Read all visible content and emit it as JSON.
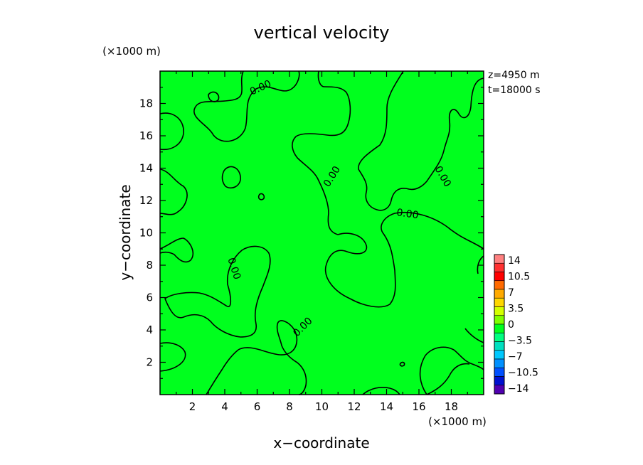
{
  "chart_data": {
    "type": "contour",
    "title": "vertical velocity",
    "xlabel": "x−coordinate",
    "ylabel": "y−coordinate",
    "x_unit": "(×1000 m)",
    "y_unit": "(×1000 m)",
    "xlim": [
      0,
      20
    ],
    "ylim": [
      0,
      20
    ],
    "x_ticks": [
      2,
      4,
      6,
      8,
      10,
      12,
      14,
      16,
      18
    ],
    "y_ticks": [
      2,
      4,
      6,
      8,
      10,
      12,
      14,
      16,
      18
    ],
    "annotations": [
      "z=4950 m",
      "t=18000 s"
    ],
    "contour_labels": [
      {
        "text": "0.00",
        "x": 6.2,
        "y": 19.0,
        "angle": 25
      },
      {
        "text": "0.00",
        "x": 10.6,
        "y": 13.5,
        "angle": 58
      },
      {
        "text": "0.00",
        "x": 15.3,
        "y": 11.2,
        "angle": -8
      },
      {
        "text": "0.00",
        "x": 17.5,
        "y": 13.5,
        "angle": -60
      },
      {
        "text": "0.00",
        "x": 4.6,
        "y": 7.8,
        "angle": -72
      },
      {
        "text": "0.00",
        "x": 8.8,
        "y": 4.2,
        "angle": 45
      }
    ],
    "field_color": "#00ff1e",
    "colorbar": {
      "labels": [
        "14",
        "10.5",
        "7",
        "3.5",
        "0",
        "−3.5",
        "−7",
        "−10.5",
        "−14"
      ],
      "colors": [
        "#ff8080",
        "#ff3030",
        "#ff0000",
        "#ff6a00",
        "#ffaa00",
        "#ffd700",
        "#d4ff00",
        "#80ff00",
        "#00ff1e",
        "#00ff80",
        "#00e0c0",
        "#00c8ff",
        "#0090ff",
        "#0050ff",
        "#0010d0",
        "#5000b0"
      ]
    }
  }
}
